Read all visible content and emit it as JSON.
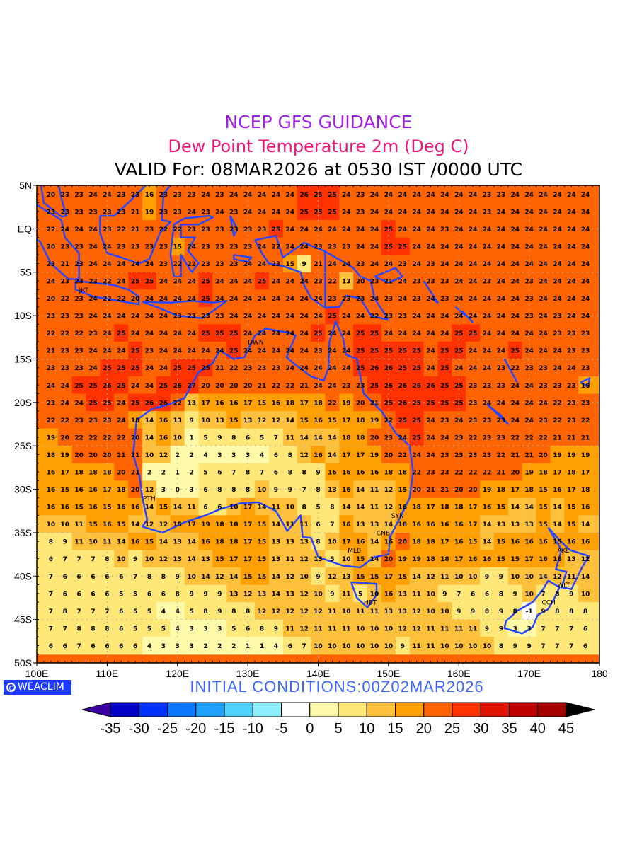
{
  "header": {
    "line1": "NCEP GFS GUIDANCE",
    "line2": "Dew Point Temperature 2m (Deg C)",
    "line3": "VALID For: 08MAR2026 at 0530 IST /0000 UTC"
  },
  "footer": {
    "logo_text": "WEACLIM",
    "initial_conditions": "INITIAL  CONDITIONS:00Z02MAR2026"
  },
  "axes": {
    "lat_labels": [
      [
        "5N",
        5
      ],
      [
        "EQ",
        0
      ],
      [
        "5S",
        -5
      ],
      [
        "10S",
        -10
      ],
      [
        "15S",
        -15
      ],
      [
        "20S",
        -20
      ],
      [
        "25S",
        -25
      ],
      [
        "30S",
        -30
      ],
      [
        "35S",
        -35
      ],
      [
        "40S",
        -40
      ],
      [
        "45S",
        -45
      ],
      [
        "50S",
        -50
      ]
    ],
    "lon_labels": [
      [
        "100E",
        100
      ],
      [
        "110E",
        110
      ],
      [
        "120E",
        120
      ],
      [
        "130E",
        130
      ],
      [
        "140E",
        140
      ],
      [
        "150E",
        150
      ],
      [
        "160E",
        160
      ],
      [
        "170E",
        170
      ],
      [
        "180",
        180
      ]
    ],
    "lon_range": [
      100,
      180
    ],
    "lat_range": [
      -50,
      5
    ]
  },
  "cities": [
    {
      "name": "JKT",
      "lon": 106.8,
      "lat": -6.2
    },
    {
      "name": "DWN",
      "lon": 130.8,
      "lat": -12.4
    },
    {
      "name": "PTH",
      "lon": 115.9,
      "lat": -32.0
    },
    {
      "name": "SYN",
      "lon": 151.2,
      "lat": -33.9
    },
    {
      "name": "CNB",
      "lon": 149.1,
      "lat": -35.3
    },
    {
      "name": "MLB",
      "lon": 145.0,
      "lat": -37.8
    },
    {
      "name": "HBT",
      "lon": 147.3,
      "lat": -42.9
    },
    {
      "name": "AKL",
      "lon": 174.8,
      "lat": -36.9
    },
    {
      "name": "WLT",
      "lon": 174.8,
      "lat": -41.3
    },
    {
      "name": "CCH",
      "lon": 172.6,
      "lat": -43.5
    }
  ],
  "colorbar": {
    "labels": [
      "-35",
      "-30",
      "-25",
      "-20",
      "-15",
      "-10",
      "-5",
      "0",
      "5",
      "10",
      "15",
      "20",
      "25",
      "30",
      "35",
      "40",
      "45"
    ],
    "colors": [
      "#0000c8",
      "#0032ff",
      "#0a78ff",
      "#1ea0ff",
      "#50d2ff",
      "#8cf0ff",
      "#ffffff",
      "#fffaaa",
      "#ffe878",
      "#ffc03c",
      "#ffa000",
      "#ff6400",
      "#ff3200",
      "#e11400",
      "#c00000",
      "#a50000"
    ],
    "under_color": "#3c00a0",
    "over_color": "#000000"
  },
  "chart_data": {
    "type": "heatmap",
    "title": "Dew Point Temperature 2m (Deg C)",
    "units": "Deg C",
    "lons": [
      102,
      104,
      106,
      108,
      110,
      112,
      114,
      116,
      118,
      120,
      122,
      124,
      126,
      128,
      130,
      132,
      134,
      136,
      138,
      140,
      142,
      144,
      146,
      148,
      150,
      152,
      154,
      156,
      158,
      160,
      162,
      164,
      166,
      168,
      170,
      172,
      174,
      176,
      178
    ],
    "lats": [
      4,
      2,
      0,
      -2,
      -4,
      -6,
      -8,
      -10,
      -12,
      -14,
      -16,
      -18,
      -20,
      -22,
      -24,
      -26,
      -28,
      -30,
      -32,
      -34,
      -36,
      -38,
      -40,
      -42,
      -44,
      -46,
      -48
    ],
    "values": [
      [
        20,
        23,
        23,
        24,
        24,
        23,
        23,
        16,
        23,
        23,
        23,
        24,
        23,
        24,
        24,
        24,
        24,
        24,
        26,
        25,
        25,
        24,
        23,
        24,
        24,
        24,
        24,
        24,
        24,
        24,
        24,
        23,
        23,
        24,
        24,
        24,
        24,
        24,
        24
      ],
      [
        23,
        23,
        23,
        23,
        23,
        23,
        21,
        19,
        23,
        23,
        24,
        23,
        24,
        23,
        24,
        24,
        24,
        24,
        25,
        25,
        25,
        24,
        23,
        24,
        24,
        24,
        24,
        24,
        24,
        24,
        24,
        23,
        24,
        24,
        24,
        24,
        24,
        24,
        24
      ],
      [
        22,
        24,
        24,
        24,
        23,
        22,
        21,
        23,
        22,
        22,
        23,
        23,
        23,
        23,
        23,
        23,
        25,
        24,
        24,
        24,
        24,
        24,
        24,
        24,
        25,
        24,
        24,
        24,
        23,
        24,
        24,
        24,
        24,
        24,
        24,
        24,
        24,
        24,
        24
      ],
      [
        20,
        23,
        23,
        24,
        24,
        23,
        23,
        23,
        23,
        15,
        24,
        23,
        23,
        23,
        23,
        24,
        22,
        24,
        24,
        23,
        23,
        23,
        24,
        24,
        25,
        25,
        24,
        24,
        24,
        24,
        24,
        24,
        24,
        24,
        24,
        24,
        24,
        24,
        24
      ],
      [
        23,
        21,
        23,
        24,
        24,
        24,
        24,
        24,
        23,
        22,
        22,
        23,
        23,
        23,
        24,
        24,
        23,
        15,
        9,
        21,
        24,
        24,
        23,
        24,
        24,
        23,
        24,
        23,
        24,
        24,
        24,
        24,
        24,
        24,
        24,
        24,
        24,
        24,
        24
      ],
      [
        24,
        23,
        23,
        23,
        22,
        24,
        25,
        25,
        24,
        24,
        24,
        25,
        24,
        24,
        24,
        25,
        24,
        24,
        24,
        23,
        22,
        13,
        20,
        23,
        21,
        24,
        23,
        23,
        23,
        24,
        24,
        23,
        24,
        24,
        23,
        24,
        24,
        24,
        24
      ],
      [
        20,
        22,
        23,
        24,
        22,
        22,
        20,
        24,
        24,
        24,
        24,
        25,
        24,
        24,
        24,
        24,
        24,
        24,
        24,
        24,
        23,
        23,
        23,
        24,
        23,
        24,
        23,
        24,
        23,
        24,
        24,
        24,
        24,
        24,
        23,
        24,
        24,
        24,
        24
      ],
      [
        23,
        23,
        23,
        24,
        24,
        24,
        24,
        24,
        24,
        23,
        23,
        23,
        23,
        24,
        24,
        24,
        24,
        24,
        24,
        24,
        25,
        24,
        24,
        22,
        23,
        23,
        24,
        24,
        24,
        24,
        24,
        24,
        24,
        24,
        23,
        24,
        23,
        24,
        24
      ],
      [
        22,
        22,
        22,
        23,
        24,
        25,
        24,
        24,
        24,
        24,
        24,
        25,
        25,
        25,
        24,
        24,
        24,
        24,
        24,
        25,
        24,
        24,
        25,
        25,
        24,
        24,
        24,
        24,
        24,
        25,
        25,
        24,
        24,
        24,
        24,
        24,
        23,
        23,
        23
      ],
      [
        21,
        23,
        23,
        24,
        24,
        24,
        25,
        23,
        24,
        24,
        24,
        24,
        24,
        25,
        24,
        24,
        24,
        24,
        24,
        23,
        24,
        24,
        25,
        25,
        25,
        25,
        25,
        24,
        25,
        25,
        24,
        24,
        24,
        25,
        24,
        24,
        24,
        23,
        23
      ],
      [
        23,
        23,
        23,
        24,
        25,
        25,
        25,
        24,
        24,
        25,
        25,
        25,
        21,
        22,
        23,
        23,
        23,
        24,
        24,
        24,
        24,
        24,
        25,
        26,
        26,
        25,
        25,
        24,
        25,
        24,
        24,
        24,
        23,
        22,
        23,
        23,
        24,
        24,
        23
      ],
      [
        24,
        24,
        25,
        25,
        26,
        25,
        24,
        24,
        25,
        26,
        27,
        20,
        20,
        20,
        20,
        21,
        22,
        22,
        21,
        24,
        24,
        23,
        23,
        25,
        26,
        26,
        26,
        26,
        25,
        25,
        23,
        23,
        23,
        24,
        24,
        23,
        23,
        23,
        16
      ],
      [
        23,
        24,
        24,
        25,
        25,
        24,
        25,
        26,
        26,
        22,
        13,
        17,
        16,
        16,
        17,
        15,
        16,
        18,
        17,
        18,
        22,
        19,
        20,
        21,
        25,
        26,
        25,
        25,
        25,
        25,
        23,
        24,
        24,
        24,
        24,
        24,
        22,
        23,
        23
      ],
      [
        22,
        22,
        23,
        23,
        23,
        24,
        18,
        14,
        16,
        13,
        9,
        10,
        13,
        15,
        13,
        12,
        12,
        14,
        15,
        16,
        15,
        17,
        18,
        19,
        22,
        25,
        25,
        24,
        23,
        24,
        23,
        23,
        23,
        24,
        24,
        23,
        22,
        23,
        22
      ],
      [
        19,
        20,
        22,
        22,
        22,
        22,
        20,
        14,
        16,
        10,
        1,
        5,
        9,
        8,
        6,
        5,
        7,
        11,
        14,
        14,
        14,
        18,
        18,
        20,
        23,
        24,
        25,
        24,
        24,
        23,
        22,
        23,
        23,
        22,
        22,
        22,
        21,
        21,
        21
      ],
      [
        18,
        19,
        20,
        20,
        20,
        21,
        21,
        10,
        12,
        2,
        2,
        4,
        3,
        3,
        3,
        4,
        6,
        8,
        12,
        16,
        14,
        17,
        17,
        19,
        20,
        22,
        24,
        24,
        23,
        23,
        23,
        23,
        22,
        21,
        21,
        20,
        19,
        19,
        19
      ],
      [
        16,
        17,
        18,
        18,
        18,
        20,
        21,
        2,
        2,
        1,
        2,
        5,
        6,
        7,
        8,
        7,
        6,
        8,
        8,
        9,
        16,
        16,
        16,
        16,
        18,
        18,
        22,
        23,
        23,
        22,
        22,
        22,
        21,
        20,
        19,
        18,
        17,
        18,
        17
      ],
      [
        16,
        15,
        16,
        16,
        17,
        18,
        20,
        12,
        3,
        0,
        3,
        6,
        8,
        8,
        8,
        10,
        9,
        9,
        7,
        8,
        13,
        16,
        14,
        11,
        12,
        15,
        20,
        21,
        21,
        20,
        20,
        19,
        18,
        17,
        18,
        15,
        16,
        17,
        18
      ],
      [
        16,
        16,
        15,
        16,
        15,
        16,
        16,
        14,
        15,
        14,
        11,
        6,
        6,
        10,
        17,
        14,
        11,
        10,
        8,
        5,
        8,
        14,
        14,
        11,
        12,
        16,
        18,
        17,
        18,
        18,
        17,
        16,
        15,
        14,
        14,
        15,
        14,
        15,
        16
      ],
      [
        10,
        10,
        11,
        15,
        16,
        15,
        14,
        12,
        12,
        15,
        17,
        19,
        18,
        18,
        17,
        15,
        14,
        11,
        11,
        6,
        7,
        16,
        13,
        13,
        14,
        18,
        16,
        16,
        16,
        16,
        17,
        14,
        13,
        13,
        13,
        15,
        14,
        15,
        14
      ],
      [
        8,
        9,
        11,
        10,
        11,
        14,
        16,
        15,
        14,
        13,
        14,
        16,
        18,
        18,
        17,
        15,
        13,
        13,
        13,
        8,
        10,
        17,
        16,
        14,
        16,
        20,
        18,
        18,
        17,
        16,
        15,
        14,
        15,
        16,
        16,
        16,
        15,
        16,
        16
      ],
      [
        6,
        7,
        7,
        7,
        8,
        10,
        9,
        10,
        12,
        13,
        14,
        13,
        15,
        17,
        17,
        15,
        13,
        11,
        12,
        13,
        5,
        10,
        15,
        14,
        20,
        19,
        19,
        18,
        18,
        17,
        16,
        16,
        15,
        15,
        17,
        16,
        16,
        13,
        12
      ],
      [
        7,
        6,
        6,
        6,
        6,
        6,
        7,
        8,
        8,
        9,
        10,
        14,
        12,
        14,
        15,
        15,
        14,
        12,
        10,
        9,
        12,
        13,
        15,
        15,
        17,
        15,
        14,
        12,
        11,
        10,
        10,
        9,
        9,
        10,
        10,
        14,
        12,
        11,
        14
      ],
      [
        7,
        6,
        6,
        6,
        6,
        5,
        5,
        6,
        6,
        8,
        9,
        9,
        9,
        13,
        12,
        13,
        14,
        13,
        12,
        10,
        9,
        11,
        5,
        10,
        16,
        13,
        11,
        10,
        9,
        7,
        6,
        6,
        8,
        9,
        10,
        7,
        8,
        9,
        10
      ],
      [
        7,
        8,
        7,
        7,
        7,
        6,
        5,
        5,
        4,
        4,
        5,
        8,
        9,
        8,
        8,
        12,
        12,
        12,
        12,
        12,
        11,
        10,
        11,
        11,
        13,
        13,
        12,
        10,
        10,
        9,
        9,
        8,
        9,
        8,
        -1,
        9,
        8,
        8,
        8
      ],
      [
        7,
        7,
        8,
        8,
        8,
        6,
        5,
        5,
        5,
        4,
        3,
        3,
        3,
        5,
        6,
        8,
        9,
        11,
        12,
        11,
        11,
        11,
        10,
        10,
        10,
        12,
        12,
        11,
        11,
        11,
        11,
        9,
        9,
        3,
        3,
        7,
        7,
        7,
        6
      ],
      [
        6,
        6,
        7,
        6,
        6,
        6,
        6,
        4,
        3,
        3,
        3,
        2,
        2,
        2,
        1,
        1,
        4,
        6,
        7,
        10,
        10,
        10,
        10,
        10,
        10,
        9,
        11,
        11,
        10,
        10,
        10,
        10,
        8,
        9,
        9,
        7,
        7,
        7,
        6
      ]
    ]
  }
}
